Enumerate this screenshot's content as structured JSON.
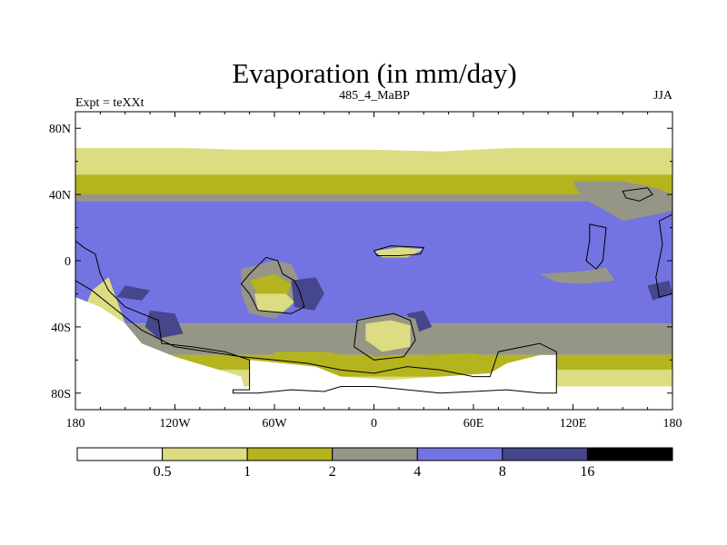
{
  "chart_data": {
    "type": "heatmap",
    "title": "Evaporation (in mm/day)",
    "subtitle_left": "Expt = teXXt",
    "subtitle_center": "485_4_MaBP",
    "subtitle_right": "JJA",
    "x_range": [
      -180,
      180
    ],
    "y_range": [
      -90,
      90
    ],
    "x_ticks": [
      {
        "value": -180,
        "label": "180"
      },
      {
        "value": -120,
        "label": "120W"
      },
      {
        "value": -60,
        "label": "60W"
      },
      {
        "value": 0,
        "label": "0"
      },
      {
        "value": 60,
        "label": "60E"
      },
      {
        "value": 120,
        "label": "120E"
      },
      {
        "value": 180,
        "label": "180"
      }
    ],
    "y_ticks": [
      {
        "value": 80,
        "label": "80N"
      },
      {
        "value": 40,
        "label": "40N"
      },
      {
        "value": 0,
        "label": "0"
      },
      {
        "value": -40,
        "label": "40S"
      },
      {
        "value": -80,
        "label": "80S"
      }
    ],
    "colorbar": {
      "levels": [
        {
          "label": "0.5",
          "value": 0.5
        },
        {
          "label": "1",
          "value": 1
        },
        {
          "label": "2",
          "value": 2
        },
        {
          "label": "4",
          "value": 4
        },
        {
          "label": "8",
          "value": 8
        },
        {
          "label": "16",
          "value": 16
        }
      ],
      "colors": [
        "#ffffff",
        "#dcdc82",
        "#b4b41e",
        "#969687",
        "#7373e1",
        "#46468c",
        "#000000"
      ]
    },
    "bands": [
      {
        "lat_top": 90,
        "lat_bottom": 68,
        "class": 0
      },
      {
        "lat_top": 68,
        "lat_bottom": 52,
        "class": 1
      },
      {
        "lat_top": 52,
        "lat_bottom": 44,
        "class": 2
      },
      {
        "lat_top": 44,
        "lat_bottom": 36,
        "class": 3
      },
      {
        "lat_top": 36,
        "lat_bottom": -38,
        "class": 4
      },
      {
        "lat_top": -38,
        "lat_bottom": -57,
        "class": 3
      },
      {
        "lat_top": -57,
        "lat_bottom": -66,
        "class": 2
      },
      {
        "lat_top": -66,
        "lat_bottom": -76,
        "class": 1
      },
      {
        "lat_top": -76,
        "lat_bottom": -90,
        "class": 0
      }
    ],
    "regions": [
      {
        "name": "north-white-patch",
        "class": 0,
        "points": [
          [
            -110,
            72
          ],
          [
            -80,
            75
          ],
          [
            -40,
            73
          ],
          [
            0,
            72
          ],
          [
            40,
            74
          ],
          [
            70,
            71
          ],
          [
            80,
            68
          ],
          [
            40,
            66
          ],
          [
            0,
            67
          ],
          [
            -40,
            67
          ],
          [
            -80,
            67
          ],
          [
            -110,
            68
          ]
        ]
      },
      {
        "name": "north-polar-white",
        "class": 0,
        "points": [
          [
            -180,
            90
          ],
          [
            180,
            90
          ],
          [
            180,
            68
          ],
          [
            140,
            70
          ],
          [
            100,
            70
          ],
          [
            60,
            70
          ],
          [
            20,
            72
          ],
          [
            -20,
            74
          ],
          [
            -60,
            70
          ],
          [
            -100,
            70
          ],
          [
            -140,
            72
          ],
          [
            -180,
            70
          ]
        ]
      },
      {
        "name": "north-temperate-olive-edge",
        "class": 2,
        "points": [
          [
            -180,
            48
          ],
          [
            -150,
            50
          ],
          [
            -120,
            49
          ],
          [
            -80,
            46
          ],
          [
            -40,
            45
          ],
          [
            0,
            47
          ],
          [
            40,
            45
          ],
          [
            80,
            46
          ],
          [
            120,
            47
          ],
          [
            150,
            48
          ],
          [
            180,
            46
          ],
          [
            180,
            40
          ],
          [
            -180,
            40
          ]
        ]
      },
      {
        "name": "asia-grey-wedge",
        "class": 3,
        "points": [
          [
            120,
            48
          ],
          [
            150,
            48
          ],
          [
            170,
            44
          ],
          [
            180,
            40
          ],
          [
            180,
            30
          ],
          [
            160,
            26
          ],
          [
            150,
            24
          ],
          [
            140,
            30
          ],
          [
            125,
            38
          ]
        ]
      },
      {
        "name": "tropical-grey-east",
        "class": 3,
        "points": [
          [
            100,
            -8
          ],
          [
            130,
            -6
          ],
          [
            140,
            -4
          ],
          [
            145,
            -12
          ],
          [
            125,
            -14
          ],
          [
            110,
            -13
          ]
        ]
      },
      {
        "name": "africa-yellow",
        "class": 1,
        "points": [
          [
            0,
            6
          ],
          [
            15,
            8
          ],
          [
            30,
            7
          ],
          [
            20,
            2
          ],
          [
            5,
            2
          ]
        ]
      },
      {
        "name": "samerica-grey",
        "class": 3,
        "points": [
          [
            -80,
            -5
          ],
          [
            -60,
            0
          ],
          [
            -50,
            -2
          ],
          [
            -45,
            -12
          ],
          [
            -50,
            -28
          ],
          [
            -60,
            -35
          ],
          [
            -75,
            -32
          ],
          [
            -80,
            -20
          ]
        ]
      },
      {
        "name": "samerica-yellow",
        "class": 1,
        "points": [
          [
            -72,
            -20
          ],
          [
            -55,
            -18
          ],
          [
            -48,
            -25
          ],
          [
            -55,
            -31
          ],
          [
            -70,
            -30
          ]
        ]
      },
      {
        "name": "samerica-olive",
        "class": 2,
        "points": [
          [
            -75,
            -12
          ],
          [
            -60,
            -8
          ],
          [
            -50,
            -14
          ],
          [
            -52,
            -20
          ],
          [
            -70,
            -20
          ]
        ]
      },
      {
        "name": "south-indian-darkblue",
        "class": 5,
        "points": [
          [
            -50,
            -12
          ],
          [
            -35,
            -10
          ],
          [
            -30,
            -20
          ],
          [
            -36,
            -30
          ],
          [
            -48,
            -28
          ]
        ]
      },
      {
        "name": "east-pacific-darkblue",
        "class": 5,
        "points": [
          [
            -150,
            -15
          ],
          [
            -135,
            -18
          ],
          [
            -140,
            -24
          ],
          [
            -155,
            -22
          ]
        ]
      },
      {
        "name": "south-pacific-darkblue",
        "class": 5,
        "points": [
          [
            -135,
            -30
          ],
          [
            -120,
            -32
          ],
          [
            -115,
            -44
          ],
          [
            -130,
            -47
          ],
          [
            -138,
            -40
          ]
        ]
      },
      {
        "name": "madagascar-darkblue",
        "class": 5,
        "points": [
          [
            20,
            -32
          ],
          [
            30,
            -30
          ],
          [
            35,
            -40
          ],
          [
            24,
            -44
          ]
        ]
      },
      {
        "name": "wpac-darkblue",
        "class": 5,
        "points": [
          [
            165,
            -15
          ],
          [
            178,
            -12
          ],
          [
            180,
            -20
          ],
          [
            168,
            -24
          ]
        ]
      },
      {
        "name": "australia-grey",
        "class": 3,
        "points": [
          [
            -10,
            -35
          ],
          [
            10,
            -32
          ],
          [
            25,
            -35
          ],
          [
            28,
            -46
          ],
          [
            20,
            -56
          ],
          [
            0,
            -58
          ],
          [
            -10,
            -50
          ]
        ]
      },
      {
        "name": "australia-yellow",
        "class": 1,
        "points": [
          [
            -5,
            -38
          ],
          [
            10,
            -36
          ],
          [
            22,
            -39
          ],
          [
            22,
            -52
          ],
          [
            5,
            -55
          ],
          [
            -5,
            -48
          ]
        ]
      },
      {
        "name": "antarctic-olive-lobe",
        "class": 2,
        "points": [
          [
            -60,
            -55
          ],
          [
            -30,
            -55
          ],
          [
            0,
            -60
          ],
          [
            30,
            -57
          ],
          [
            60,
            -56
          ],
          [
            80,
            -60
          ],
          [
            80,
            -70
          ],
          [
            -60,
            -70
          ]
        ]
      },
      {
        "name": "antarctica-white",
        "class": 0,
        "points": [
          [
            -75,
            -60
          ],
          [
            -35,
            -64
          ],
          [
            -20,
            -70
          ],
          [
            10,
            -72
          ],
          [
            40,
            -70
          ],
          [
            70,
            -68
          ],
          [
            80,
            -62
          ],
          [
            100,
            -57
          ],
          [
            110,
            -57
          ],
          [
            110,
            -90
          ],
          [
            -75,
            -90
          ]
        ]
      },
      {
        "name": "southern-yellow-lobe",
        "class": 1,
        "points": [
          [
            -160,
            -10
          ],
          [
            -170,
            -18
          ],
          [
            -175,
            -30
          ],
          [
            -165,
            -36
          ],
          [
            -150,
            -38
          ]
        ]
      },
      {
        "name": "southern-white-band",
        "class": 0,
        "points": [
          [
            -180,
            -22
          ],
          [
            -165,
            -28
          ],
          [
            -150,
            -38
          ],
          [
            -140,
            -50
          ],
          [
            -120,
            -58
          ],
          [
            -100,
            -64
          ],
          [
            -80,
            -70
          ],
          [
            -75,
            -90
          ],
          [
            -180,
            -90
          ]
        ]
      }
    ],
    "continents": [
      {
        "name": "continent-west",
        "points": [
          [
            -180,
            12
          ],
          [
            -175,
            8
          ],
          [
            -168,
            4
          ],
          [
            -165,
            -8
          ],
          [
            -160,
            -18
          ],
          [
            -150,
            -28
          ],
          [
            -140,
            -32
          ],
          [
            -130,
            -36
          ],
          [
            -128,
            -50
          ],
          [
            -110,
            -52
          ],
          [
            -90,
            -55
          ],
          [
            -75,
            -60
          ],
          [
            -75,
            -78
          ],
          [
            -85,
            -78
          ],
          [
            -85,
            -80
          ],
          [
            -70,
            -80
          ],
          [
            -50,
            -78
          ],
          [
            -30,
            -79
          ],
          [
            -20,
            -76
          ],
          [
            0,
            -76
          ],
          [
            20,
            -78
          ],
          [
            40,
            -80
          ],
          [
            60,
            -79
          ],
          [
            80,
            -78
          ],
          [
            100,
            -80
          ],
          [
            110,
            -80
          ],
          [
            110,
            -55
          ],
          [
            100,
            -50
          ],
          [
            90,
            -52
          ],
          [
            75,
            -55
          ],
          [
            70,
            -70
          ],
          [
            60,
            -70
          ],
          [
            40,
            -66
          ],
          [
            20,
            -64
          ],
          [
            0,
            -68
          ],
          [
            -20,
            -66
          ],
          [
            -40,
            -62
          ],
          [
            -60,
            -60
          ],
          [
            -80,
            -58
          ],
          [
            -100,
            -55
          ],
          [
            -120,
            -52
          ],
          [
            -140,
            -42
          ],
          [
            -155,
            -30
          ],
          [
            -170,
            -18
          ],
          [
            -180,
            -12
          ]
        ]
      },
      {
        "name": "continent-africa-north",
        "points": [
          [
            0,
            6
          ],
          [
            10,
            9
          ],
          [
            30,
            8
          ],
          [
            28,
            4
          ],
          [
            15,
            3
          ],
          [
            2,
            3
          ]
        ]
      },
      {
        "name": "continent-samerica",
        "points": [
          [
            -75,
            -8
          ],
          [
            -65,
            2
          ],
          [
            -58,
            0
          ],
          [
            -55,
            -8
          ],
          [
            -48,
            -12
          ],
          [
            -45,
            -18
          ],
          [
            -42,
            -28
          ],
          [
            -50,
            -32
          ],
          [
            -70,
            -30
          ],
          [
            -75,
            -20
          ],
          [
            -80,
            -14
          ]
        ]
      },
      {
        "name": "continent-australia",
        "points": [
          [
            -10,
            -36
          ],
          [
            0,
            -34
          ],
          [
            12,
            -32
          ],
          [
            22,
            -36
          ],
          [
            25,
            -48
          ],
          [
            18,
            -58
          ],
          [
            0,
            -60
          ],
          [
            -12,
            -52
          ]
        ]
      },
      {
        "name": "continent-asia-east",
        "points": [
          [
            150,
            42
          ],
          [
            165,
            44
          ],
          [
            168,
            40
          ],
          [
            160,
            36
          ],
          [
            152,
            38
          ]
        ]
      },
      {
        "name": "continent-seasia",
        "points": [
          [
            130,
            22
          ],
          [
            140,
            20
          ],
          [
            138,
            0
          ],
          [
            134,
            -5
          ],
          [
            128,
            0
          ],
          [
            130,
            12
          ]
        ]
      },
      {
        "name": "continent-east-edge",
        "points": [
          [
            172,
            24
          ],
          [
            180,
            28
          ],
          [
            180,
            -20
          ],
          [
            172,
            -22
          ],
          [
            170,
            -10
          ],
          [
            174,
            10
          ]
        ]
      }
    ]
  }
}
